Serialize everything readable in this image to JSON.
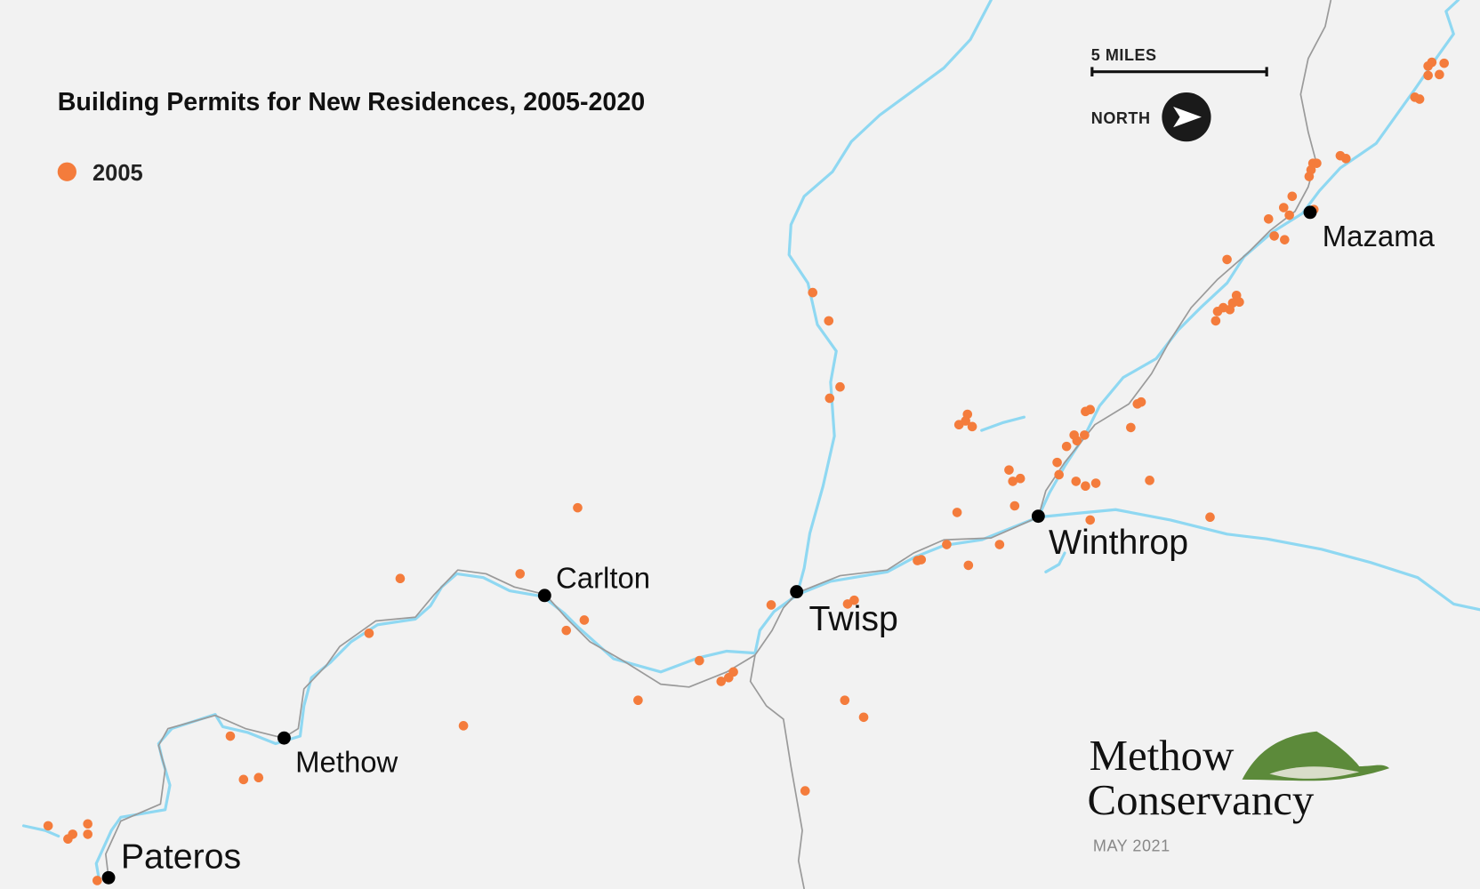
{
  "title": "Building Permits for New Residences, 2005-2020",
  "legend": [
    {
      "label": "2005",
      "color": "#f47c3c"
    }
  ],
  "towns": [
    {
      "name": "Pateros"
    },
    {
      "name": "Methow"
    },
    {
      "name": "Carlton"
    },
    {
      "name": "Twisp"
    },
    {
      "name": "Winthrop"
    },
    {
      "name": "Mazama"
    }
  ],
  "scale_label": "5 MILES",
  "north_label": "NORTH",
  "logo": {
    "line1": "Methow",
    "line2": "Conservancy"
  },
  "date": "MAY 2021"
}
